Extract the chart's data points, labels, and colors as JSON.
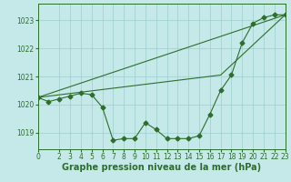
{
  "title": "Graphe pression niveau de la mer (hPa)",
  "background_color": "#c5e8e8",
  "line_color": "#2d6e2d",
  "grid_color": "#9ecece",
  "xlim": [
    0,
    23
  ],
  "ylim": [
    1018.4,
    1023.6
  ],
  "yticks": [
    1019,
    1020,
    1021,
    1022,
    1023
  ],
  "xticks": [
    0,
    2,
    3,
    4,
    5,
    6,
    7,
    8,
    9,
    10,
    11,
    12,
    13,
    14,
    15,
    16,
    17,
    18,
    19,
    20,
    21,
    22,
    23
  ],
  "xtick_labels": [
    "0",
    "2",
    "3",
    "4",
    "5",
    "6",
    "7",
    "8",
    "9",
    "10",
    "11",
    "12",
    "13",
    "14",
    "15",
    "16",
    "17",
    "18",
    "19",
    "20",
    "21",
    "22",
    "23"
  ],
  "series1_x": [
    0,
    1,
    2,
    3,
    4,
    5,
    6,
    7,
    8,
    9,
    10,
    11,
    12,
    13,
    14,
    15,
    16,
    17,
    18,
    19,
    20,
    21,
    22,
    23
  ],
  "series1_y": [
    1020.25,
    1020.1,
    1020.2,
    1020.3,
    1020.4,
    1020.35,
    1019.9,
    1018.72,
    1018.78,
    1018.78,
    1019.35,
    1019.1,
    1018.78,
    1018.78,
    1018.78,
    1018.88,
    1019.65,
    1020.5,
    1021.05,
    1022.2,
    1022.9,
    1023.1,
    1023.2,
    1023.2
  ],
  "series2_x": [
    0,
    23
  ],
  "series2_y": [
    1020.25,
    1023.2
  ],
  "series3_x": [
    0,
    17,
    23
  ],
  "series3_y": [
    1020.25,
    1021.05,
    1023.2
  ],
  "title_fontsize": 7,
  "tick_fontsize": 5.5,
  "marker_size": 2.5,
  "linewidth": 0.8
}
